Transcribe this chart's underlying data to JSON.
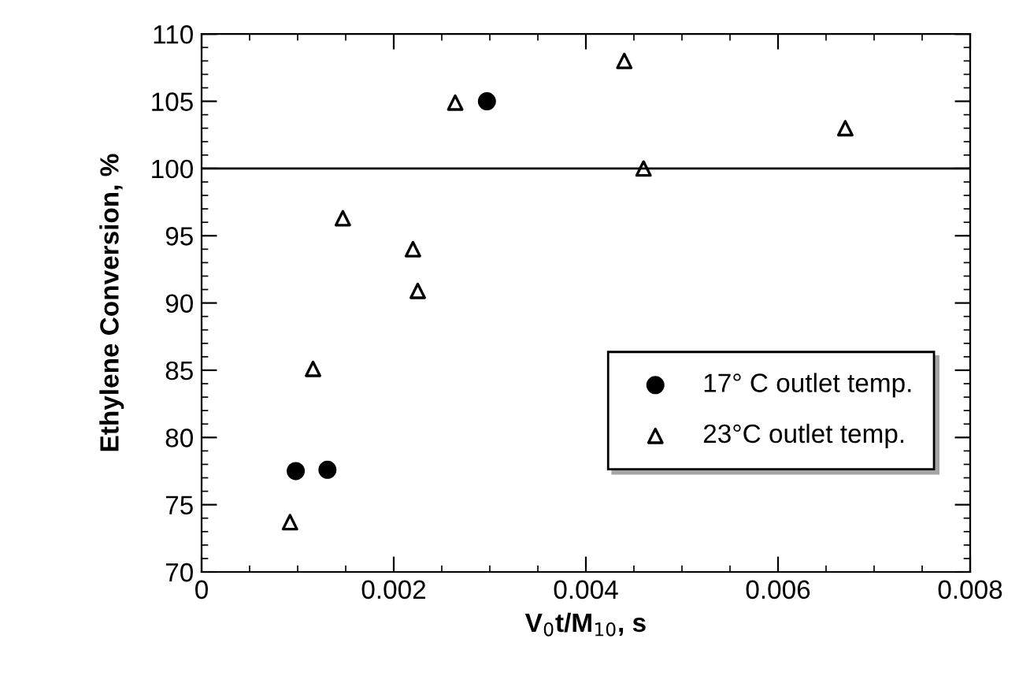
{
  "chart_data": {
    "type": "scatter",
    "xlabel": "V$_{0}$t/M$_{10}$, s",
    "ylabel": "Ethylene Conversion, %",
    "xlim": [
      0,
      0.008
    ],
    "xticks": [
      0,
      0.002,
      0.004,
      0.006,
      0.008
    ],
    "ylim": [
      70,
      110
    ],
    "yticks": [
      70,
      75,
      80,
      85,
      90,
      95,
      100,
      105,
      110
    ],
    "series": [
      {
        "name": "17° C outlet temp.",
        "color": "#000000",
        "marker": "circle",
        "x": [
          0.00098,
          0.00131,
          0.00297
        ],
        "values": [
          77.5,
          77.6,
          105
        ]
      },
      {
        "name": "23°C outlet temp.",
        "color": "#000000",
        "marker": "triangle",
        "x": [
          0.00092,
          0.00116,
          0.00147,
          0.0022,
          0.00225,
          0.00264,
          0.0044,
          0.0046,
          0.0067
        ],
        "values": [
          73.7,
          85.1,
          96.3,
          94.0,
          90.9,
          104.9,
          108,
          100,
          103
        ]
      }
    ],
    "ref_lines": [
      {
        "axis": "y",
        "value": 100,
        "color": "#000000"
      }
    ],
    "legend": "right",
    "grid": false
  }
}
